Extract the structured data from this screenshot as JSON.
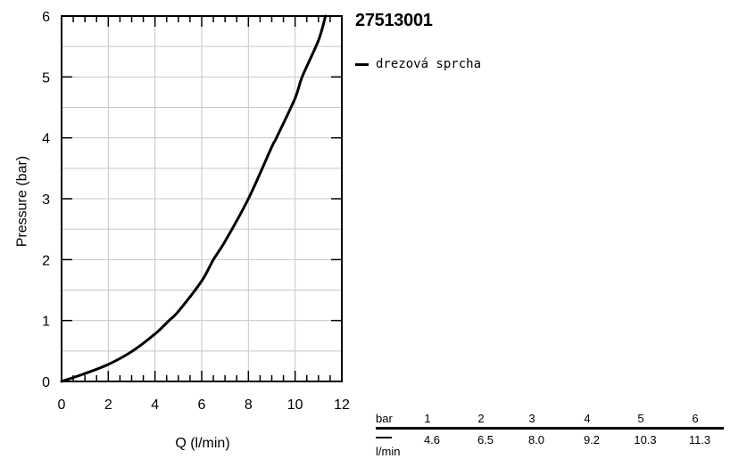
{
  "chart_data": {
    "type": "line",
    "title": "27513001",
    "xlabel": "Q (l/min)",
    "ylabel": "Pressure (bar)",
    "xlim": [
      0,
      12
    ],
    "ylim": [
      0,
      6
    ],
    "x_ticks": [
      0,
      2,
      4,
      6,
      8,
      10,
      12
    ],
    "y_ticks": [
      0,
      1,
      2,
      3,
      4,
      5,
      6
    ],
    "grid": true,
    "legend_position": "top-right",
    "series": [
      {
        "name": "drezová sprcha",
        "color": "#000000",
        "x": [
          0,
          1,
          2,
          3,
          4,
          4.6,
          5,
          6,
          6.5,
          7,
          8,
          9,
          9.2,
          10,
          10.3,
          11,
          11.3
        ],
        "y": [
          0,
          0.13,
          0.28,
          0.49,
          0.78,
          1,
          1.15,
          1.65,
          2,
          2.3,
          3,
          3.85,
          4,
          4.65,
          5,
          5.6,
          6
        ]
      }
    ]
  },
  "table": {
    "row1_label": "bar",
    "row2_label": "l/min",
    "pressures": [
      "1",
      "2",
      "3",
      "4",
      "5",
      "6"
    ],
    "flows": [
      "4.6",
      "6.5",
      "8.0",
      "9.2",
      "10.3",
      "11.3"
    ]
  }
}
